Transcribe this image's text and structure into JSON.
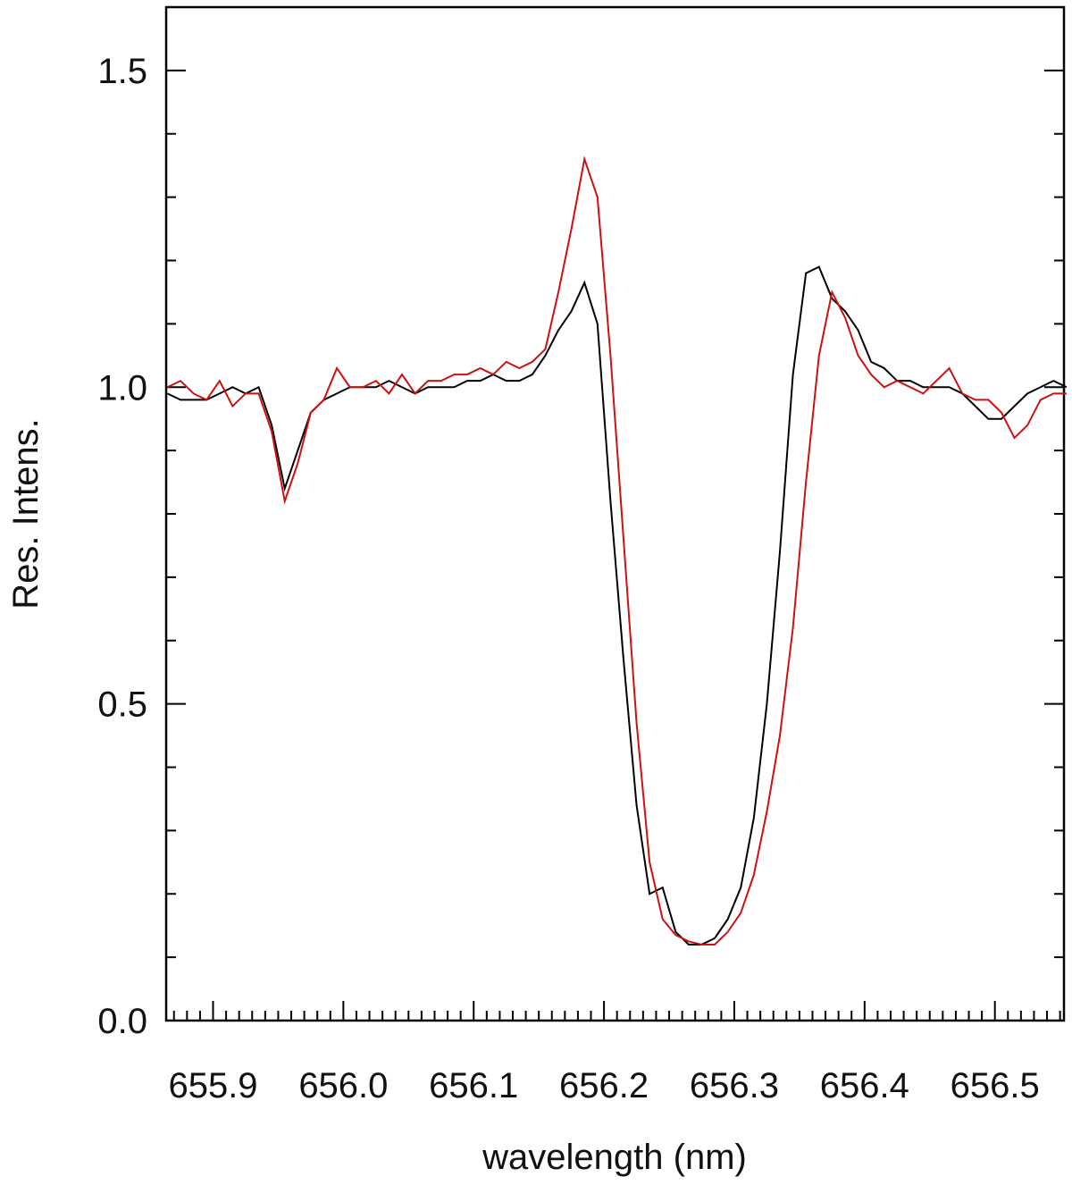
{
  "chart_data": {
    "type": "line",
    "xlabel": "wavelength (nm)",
    "ylabel": "Res. Intens.",
    "x": [
      655.865,
      655.875,
      655.885,
      655.895,
      655.905,
      655.915,
      655.925,
      655.935,
      655.945,
      655.955,
      655.965,
      655.975,
      655.985,
      655.995,
      656.005,
      656.015,
      656.025,
      656.035,
      656.045,
      656.055,
      656.065,
      656.075,
      656.085,
      656.095,
      656.105,
      656.115,
      656.125,
      656.135,
      656.145,
      656.155,
      656.165,
      656.175,
      656.185,
      656.195,
      656.205,
      656.215,
      656.225,
      656.235,
      656.245,
      656.255,
      656.265,
      656.275,
      656.285,
      656.295,
      656.305,
      656.315,
      656.325,
      656.335,
      656.345,
      656.355,
      656.365,
      656.375,
      656.385,
      656.395,
      656.405,
      656.415,
      656.425,
      656.435,
      656.445,
      656.455,
      656.465,
      656.475,
      656.485,
      656.495,
      656.505,
      656.515,
      656.525,
      656.535,
      656.545,
      656.555
    ],
    "series": [
      {
        "color": "#000000",
        "values": [
          0.99,
          0.98,
          0.98,
          0.98,
          0.99,
          1.0,
          0.99,
          1.0,
          0.94,
          0.84,
          0.9,
          0.96,
          0.98,
          0.99,
          1.0,
          1.0,
          1.0,
          1.01,
          1.0,
          0.99,
          1.0,
          1.0,
          1.0,
          1.01,
          1.01,
          1.02,
          1.01,
          1.01,
          1.02,
          1.05,
          1.09,
          1.12,
          1.165,
          1.1,
          0.82,
          0.57,
          0.34,
          0.2,
          0.21,
          0.14,
          0.12,
          0.12,
          0.13,
          0.16,
          0.21,
          0.32,
          0.5,
          0.74,
          1.02,
          1.18,
          1.19,
          1.14,
          1.12,
          1.09,
          1.04,
          1.03,
          1.01,
          1.01,
          1.0,
          1.0,
          1.0,
          0.99,
          0.97,
          0.95,
          0.95,
          0.97,
          0.99,
          1.0,
          1.01,
          1.0
        ]
      },
      {
        "color": "#cc1111",
        "values": [
          1.0,
          1.01,
          0.99,
          0.98,
          1.01,
          0.97,
          0.99,
          0.99,
          0.93,
          0.82,
          0.88,
          0.96,
          0.98,
          1.03,
          1.0,
          1.0,
          1.01,
          0.99,
          1.02,
          0.99,
          1.01,
          1.01,
          1.02,
          1.02,
          1.03,
          1.02,
          1.04,
          1.03,
          1.04,
          1.06,
          1.15,
          1.25,
          1.36,
          1.3,
          1.05,
          0.76,
          0.47,
          0.25,
          0.16,
          0.135,
          0.125,
          0.12,
          0.12,
          0.14,
          0.17,
          0.23,
          0.33,
          0.45,
          0.62,
          0.85,
          1.05,
          1.15,
          1.11,
          1.05,
          1.02,
          1.0,
          1.01,
          1.0,
          0.99,
          1.01,
          1.03,
          0.99,
          0.98,
          0.98,
          0.96,
          0.92,
          0.94,
          0.98,
          0.99,
          0.99
        ]
      }
    ],
    "xlim": [
      655.864,
      656.553
    ],
    "xticks": [
      655.9,
      {
        "value": 656,
        "label": "656.0"
      },
      656.1,
      656.2,
      656.3,
      656.4,
      656.5
    ],
    "ylim": [
      0,
      1.6
    ],
    "yticks": [
      {
        "value": 0,
        "label": "0.0"
      },
      0.5,
      {
        "value": 1,
        "label": "1.0"
      },
      1.5
    ]
  }
}
